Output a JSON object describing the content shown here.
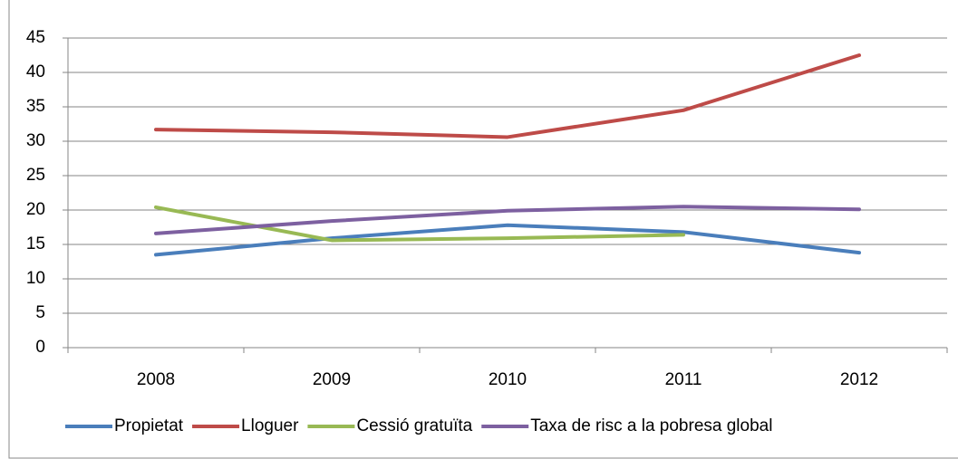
{
  "chart_data": {
    "type": "line",
    "categories": [
      "2008",
      "2009",
      "2010",
      "2011",
      "2012"
    ],
    "series": [
      {
        "name": "Propietat",
        "color": "#4a7ebb",
        "values": [
          13.5,
          15.9,
          17.8,
          16.8,
          13.8
        ]
      },
      {
        "name": "Lloguer",
        "color": "#be4b48",
        "values": [
          31.7,
          31.3,
          30.6,
          34.5,
          42.5
        ]
      },
      {
        "name": "Cessió gratuïta",
        "color": "#98b954",
        "values": [
          20.4,
          15.6,
          15.9,
          16.4,
          null
        ]
      },
      {
        "name": "Taxa de risc a la pobresa global",
        "color": "#7d60a0",
        "values": [
          16.6,
          18.4,
          19.9,
          20.5,
          20.1
        ]
      }
    ],
    "ylim": [
      0,
      45
    ],
    "yticks": [
      0,
      5,
      10,
      15,
      20,
      25,
      30,
      35,
      40,
      45
    ],
    "grid": true,
    "legend": "bottom"
  }
}
